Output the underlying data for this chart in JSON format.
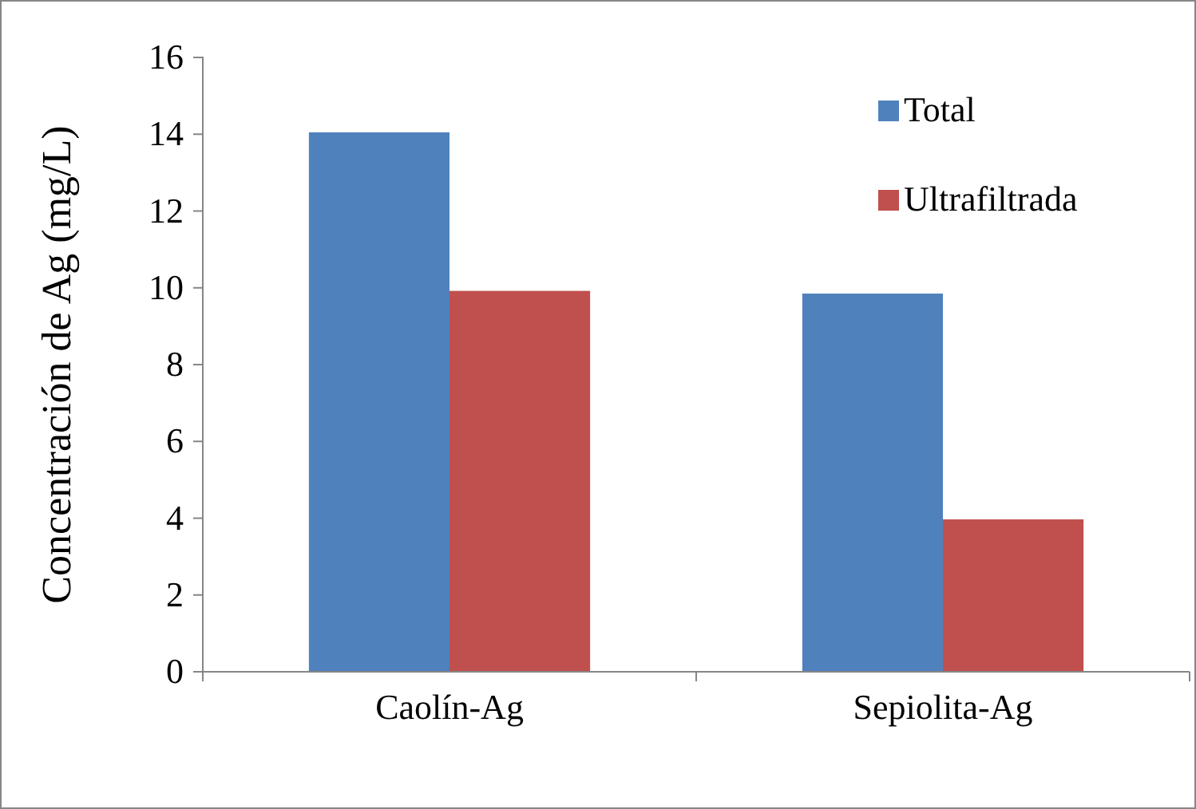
{
  "chart_data": {
    "type": "bar",
    "ylabel": "Concentración de Ag (mg/L)",
    "categories": [
      "Caolín-Ag",
      "Sepiolita-Ag"
    ],
    "series": [
      {
        "name": "Total",
        "color": "#4f81bd",
        "values": [
          14.05,
          9.85
        ]
      },
      {
        "name": "Ultrafiltrada",
        "color": "#c0504d",
        "values": [
          9.92,
          3.97
        ]
      }
    ],
    "ylim": [
      0,
      16
    ],
    "yticks": [
      0,
      2,
      4,
      6,
      8,
      10,
      12,
      14,
      16
    ],
    "grid": false,
    "legend": "top right"
  }
}
